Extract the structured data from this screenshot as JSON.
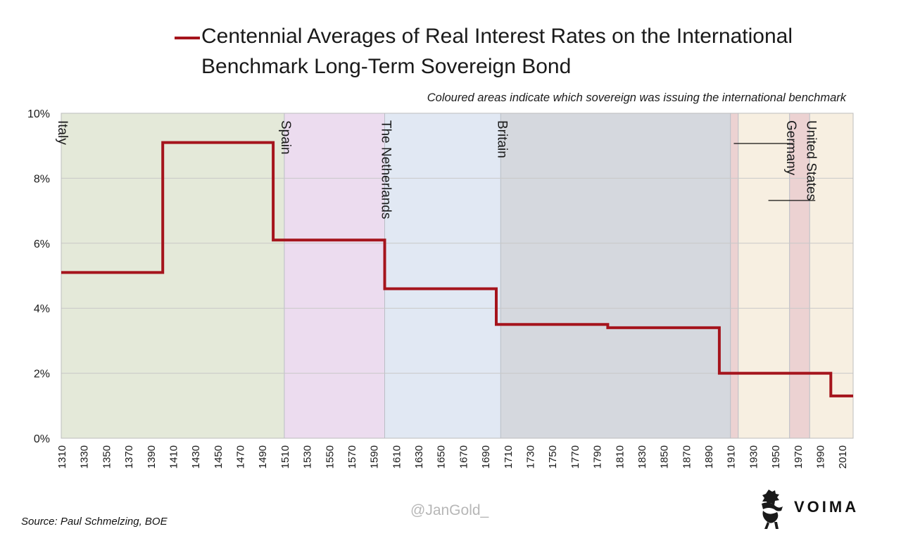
{
  "header": {
    "title": "Centennial Averages of Real Interest Rates on the International Benchmark Long-Term Sovereign Bond",
    "subtitle": "Coloured areas indicate which sovereign was issuing the international benchmark"
  },
  "footer": {
    "source": "Source: Paul Schmelzing, BOE",
    "watermark": "@JanGold_",
    "logo_text": "VOIMA"
  },
  "colors": {
    "line": "#a5141c",
    "grid": "#c8c8c8",
    "italy": "#e4e9d9",
    "spain": "#ecdcef",
    "netherlands": "#e1e8f3",
    "britain": "#d5d8de",
    "germany": "#ecd2d2",
    "united_states": "#f7efe1"
  },
  "chart_data": {
    "type": "line",
    "step": true,
    "title": "Centennial Averages of Real Interest Rates on the International Benchmark Long-Term Sovereign Bond",
    "xlabel": "",
    "ylabel": "",
    "xlim": [
      1310,
      2020
    ],
    "ylim": [
      0,
      10
    ],
    "y_ticks": [
      0,
      2,
      4,
      6,
      8,
      10
    ],
    "y_tick_labels": [
      "0%",
      "2%",
      "4%",
      "6%",
      "8%",
      "10%"
    ],
    "x_ticks": [
      1310,
      1330,
      1350,
      1370,
      1390,
      1410,
      1430,
      1450,
      1470,
      1490,
      1510,
      1530,
      1550,
      1570,
      1590,
      1610,
      1630,
      1650,
      1670,
      1690,
      1710,
      1730,
      1750,
      1770,
      1790,
      1810,
      1830,
      1850,
      1870,
      1890,
      1910,
      1930,
      1950,
      1970,
      1990,
      2010
    ],
    "grid": true,
    "series": [
      {
        "x": [
          1310,
          1401,
          1401,
          1500,
          1500,
          1600,
          1600,
          1700,
          1700,
          1800,
          1800,
          1900,
          1900,
          2000,
          2000,
          2020
        ],
        "y": [
          5.1,
          5.1,
          9.1,
          9.1,
          6.1,
          6.1,
          4.6,
          4.6,
          3.5,
          3.5,
          3.4,
          3.4,
          2.0,
          2.0,
          1.3,
          1.3
        ]
      }
    ],
    "regions": [
      {
        "label": "Italy",
        "start": 1310,
        "end": 1510,
        "color": "#e4e9d9"
      },
      {
        "label": "Spain",
        "start": 1510,
        "end": 1600,
        "color": "#ecdcef"
      },
      {
        "label": "The Netherlands",
        "start": 1600,
        "end": 1704,
        "color": "#e1e8f3"
      },
      {
        "label": "Britain",
        "start": 1704,
        "end": 1910,
        "color": "#d5d8de"
      },
      {
        "label": "",
        "start": 1910,
        "end": 1917,
        "color": "#ecd2d2"
      },
      {
        "label": "",
        "start": 1917,
        "end": 1963,
        "color": "#f7efe1"
      },
      {
        "label": "Germany",
        "start": 1963,
        "end": 1981,
        "color": "#ecd2d2"
      },
      {
        "label": "United States",
        "start": 1981,
        "end": 2020,
        "color": "#f7efe1"
      }
    ]
  }
}
